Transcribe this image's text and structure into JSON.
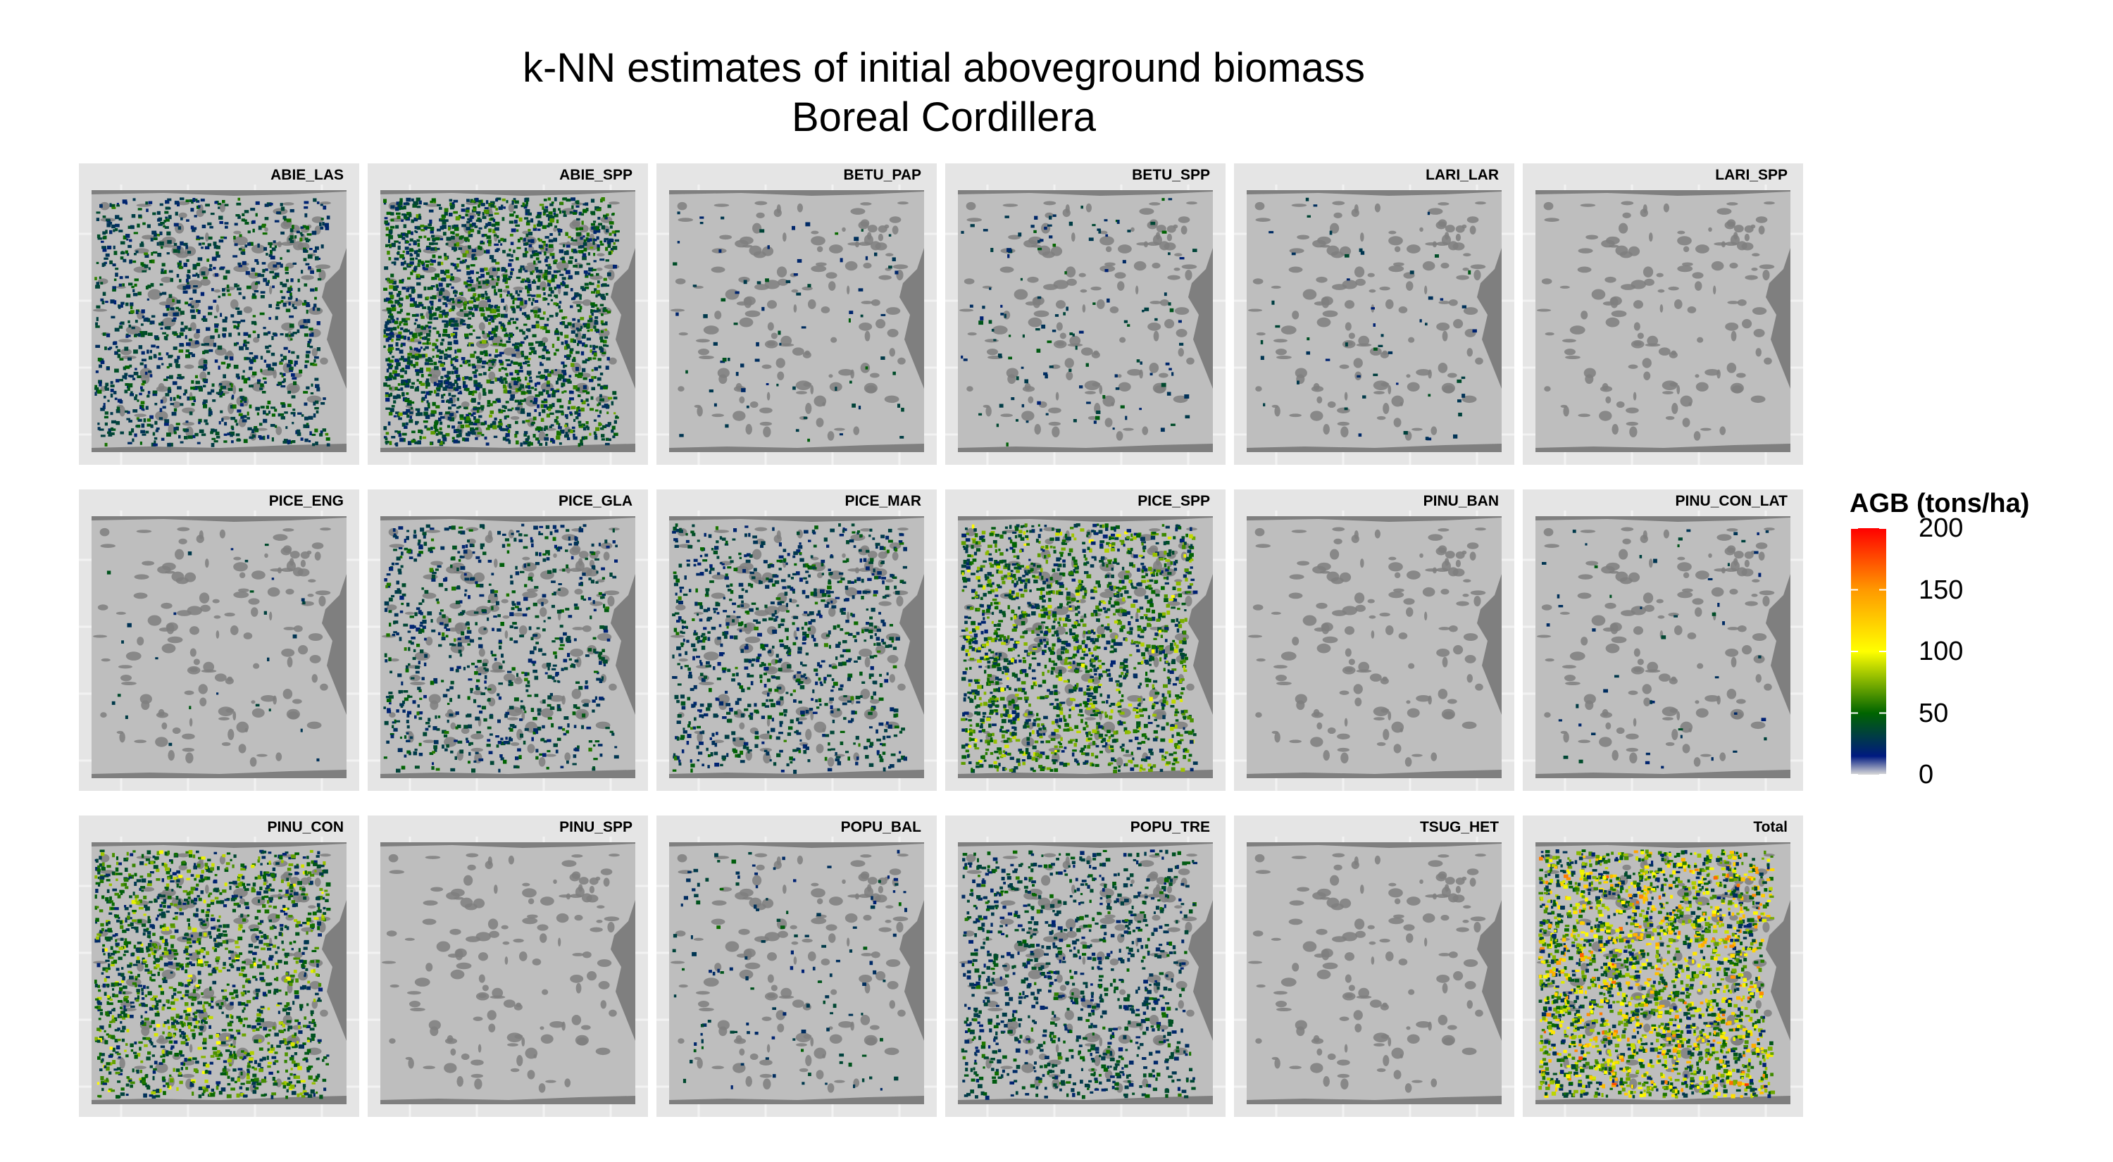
{
  "title": {
    "line1": "k-NN estimates of initial aboveground biomass",
    "line2": "Boreal Cordillera"
  },
  "panels": [
    {
      "label": "ABIE_LAS",
      "row": 0,
      "col": 0,
      "coverage": 0.45,
      "intensity": 0.15
    },
    {
      "label": "ABIE_SPP",
      "row": 0,
      "col": 1,
      "coverage": 0.85,
      "intensity": 0.2
    },
    {
      "label": "BETU_PAP",
      "row": 0,
      "col": 2,
      "coverage": 0.03,
      "intensity": 0.12
    },
    {
      "label": "BETU_SPP",
      "row": 0,
      "col": 3,
      "coverage": 0.05,
      "intensity": 0.12
    },
    {
      "label": "LARI_LAR",
      "row": 0,
      "col": 4,
      "coverage": 0.02,
      "intensity": 0.12
    },
    {
      "label": "LARI_SPP",
      "row": 0,
      "col": 5,
      "coverage": 0.0,
      "intensity": 0.1
    },
    {
      "label": "PICE_ENG",
      "row": 1,
      "col": 0,
      "coverage": 0.01,
      "intensity": 0.1
    },
    {
      "label": "PICE_GLA",
      "row": 1,
      "col": 1,
      "coverage": 0.3,
      "intensity": 0.15
    },
    {
      "label": "PICE_MAR",
      "row": 1,
      "col": 2,
      "coverage": 0.35,
      "intensity": 0.15
    },
    {
      "label": "PICE_SPP",
      "row": 1,
      "col": 3,
      "coverage": 0.7,
      "intensity": 0.3
    },
    {
      "label": "PINU_BAN",
      "row": 1,
      "col": 4,
      "coverage": 0.0,
      "intensity": 0.1
    },
    {
      "label": "PINU_CON_LAT",
      "row": 1,
      "col": 5,
      "coverage": 0.02,
      "intensity": 0.1
    },
    {
      "label": "PINU_CON",
      "row": 2,
      "col": 0,
      "coverage": 0.65,
      "intensity": 0.3
    },
    {
      "label": "PINU_SPP",
      "row": 2,
      "col": 1,
      "coverage": 0.0,
      "intensity": 0.1
    },
    {
      "label": "POPU_BAL",
      "row": 2,
      "col": 2,
      "coverage": 0.05,
      "intensity": 0.12
    },
    {
      "label": "POPU_TRE",
      "row": 2,
      "col": 3,
      "coverage": 0.4,
      "intensity": 0.15
    },
    {
      "label": "TSUG_HET",
      "row": 2,
      "col": 4,
      "coverage": 0.0,
      "intensity": 0.1
    },
    {
      "label": "Total",
      "row": 2,
      "col": 5,
      "coverage": 0.95,
      "intensity": 0.55
    }
  ],
  "legend": {
    "title": "AGB (tons/ha)",
    "ticks": [
      {
        "label": "200",
        "value": 200
      },
      {
        "label": "150",
        "value": 150
      },
      {
        "label": "100",
        "value": 100
      },
      {
        "label": "50",
        "value": 50
      },
      {
        "label": "0",
        "value": 0
      }
    ],
    "range": [
      0,
      200
    ],
    "gradient": [
      {
        "value": 0,
        "color": "#d9d9d9"
      },
      {
        "value": 15,
        "color": "#001a80"
      },
      {
        "value": 50,
        "color": "#006400"
      },
      {
        "value": 100,
        "color": "#ffff00"
      },
      {
        "value": 150,
        "color": "#ff9900"
      },
      {
        "value": 200,
        "color": "#ff0000"
      }
    ]
  },
  "colors": {
    "panel_background": "#e5e5e5",
    "land": "#bebebe",
    "water": "#7f7f7f",
    "grid": "#f2f2f2"
  }
}
